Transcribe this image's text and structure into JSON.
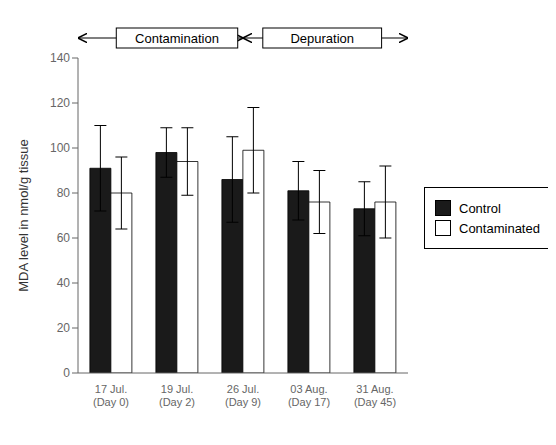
{
  "chart_data": {
    "type": "bar",
    "categories": [
      "17 Jul.\n(Day 0)",
      "19 Jul.\n(Day 2)",
      "26 Jul.\n(Day 9)",
      "03 Aug.\n(Day 17)",
      "31 Aug.\n(Day 45)"
    ],
    "series": [
      {
        "name": "Control",
        "color": "#1a1a1a",
        "values": [
          91,
          98,
          86,
          81,
          73
        ],
        "errors": [
          19,
          11,
          19,
          13,
          12
        ]
      },
      {
        "name": "Contaminated",
        "color": "#ffffff",
        "values": [
          80,
          94,
          99,
          76,
          76
        ],
        "errors": [
          16,
          15,
          19,
          14,
          16
        ]
      }
    ],
    "ylabel": "MDA level in nmol/g tissue",
    "ylim": [
      0,
      140
    ],
    "yticks": [
      0,
      20,
      40,
      60,
      80,
      100,
      120,
      140
    ],
    "annotations": [
      "Contamination",
      "Depuration"
    ],
    "grid": false,
    "legend": "right"
  }
}
